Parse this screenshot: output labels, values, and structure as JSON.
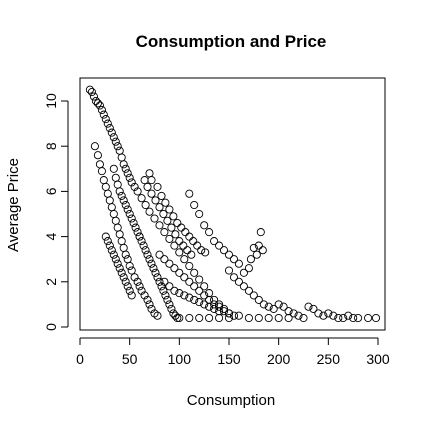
{
  "chart_data": {
    "type": "scatter",
    "title": "Consumption and Price",
    "xlabel": "Consumption",
    "ylabel": "Average Price",
    "xlim": [
      0,
      300
    ],
    "ylim": [
      0,
      10
    ],
    "xticks": [
      0,
      50,
      100,
      150,
      200,
      250,
      300
    ],
    "yticks": [
      0,
      2,
      4,
      6,
      8,
      10
    ],
    "marker": "open-circle",
    "grid": false,
    "point_count_estimate": 1200,
    "points": [
      [
        10,
        10.5
      ],
      [
        12,
        10.4
      ],
      [
        14,
        10.2
      ],
      [
        16,
        10.0
      ],
      [
        18,
        9.9
      ],
      [
        20,
        9.8
      ],
      [
        22,
        9.6
      ],
      [
        24,
        9.4
      ],
      [
        26,
        9.2
      ],
      [
        28,
        9.0
      ],
      [
        30,
        8.8
      ],
      [
        32,
        8.6
      ],
      [
        34,
        8.4
      ],
      [
        36,
        8.2
      ],
      [
        38,
        8.0
      ],
      [
        40,
        7.8
      ],
      [
        42,
        7.5
      ],
      [
        44,
        7.2
      ],
      [
        46,
        7.0
      ],
      [
        48,
        6.8
      ],
      [
        50,
        6.6
      ],
      [
        52,
        6.4
      ],
      [
        55,
        6.2
      ],
      [
        58,
        6.0
      ],
      [
        62,
        5.7
      ],
      [
        66,
        5.4
      ],
      [
        70,
        5.1
      ],
      [
        75,
        4.8
      ],
      [
        80,
        4.5
      ],
      [
        85,
        4.2
      ],
      [
        90,
        3.9
      ],
      [
        95,
        3.6
      ],
      [
        100,
        3.3
      ],
      [
        105,
        3.0
      ],
      [
        110,
        2.7
      ],
      [
        115,
        2.4
      ],
      [
        120,
        2.1
      ],
      [
        125,
        1.8
      ],
      [
        130,
        1.5
      ],
      [
        135,
        1.2
      ],
      [
        140,
        1.0
      ],
      [
        145,
        0.8
      ],
      [
        150,
        0.6
      ],
      [
        155,
        0.5
      ],
      [
        15,
        8.0
      ],
      [
        18,
        7.6
      ],
      [
        20,
        7.2
      ],
      [
        22,
        6.9
      ],
      [
        24,
        6.5
      ],
      [
        26,
        6.2
      ],
      [
        28,
        5.9
      ],
      [
        30,
        5.6
      ],
      [
        32,
        5.3
      ],
      [
        34,
        5.0
      ],
      [
        36,
        4.7
      ],
      [
        38,
        4.4
      ],
      [
        40,
        4.1
      ],
      [
        42,
        3.8
      ],
      [
        44,
        3.5
      ],
      [
        46,
        3.2
      ],
      [
        48,
        3.0
      ],
      [
        50,
        2.7
      ],
      [
        52,
        2.5
      ],
      [
        55,
        2.2
      ],
      [
        58,
        2.0
      ],
      [
        60,
        1.8
      ],
      [
        62,
        1.6
      ],
      [
        65,
        1.4
      ],
      [
        68,
        1.2
      ],
      [
        70,
        1.0
      ],
      [
        72,
        0.8
      ],
      [
        75,
        0.6
      ],
      [
        78,
        0.5
      ],
      [
        65,
        6.5
      ],
      [
        68,
        6.2
      ],
      [
        72,
        5.9
      ],
      [
        76,
        5.6
      ],
      [
        80,
        5.3
      ],
      [
        84,
        5.0
      ],
      [
        88,
        4.7
      ],
      [
        92,
        4.4
      ],
      [
        96,
        4.1
      ],
      [
        100,
        3.8
      ],
      [
        104,
        3.6
      ],
      [
        108,
        3.4
      ],
      [
        112,
        3.2
      ],
      [
        70,
        6.8
      ],
      [
        72,
        6.5
      ],
      [
        78,
        6.2
      ],
      [
        82,
        5.8
      ],
      [
        86,
        5.5
      ],
      [
        90,
        5.2
      ],
      [
        94,
        4.9
      ],
      [
        98,
        4.6
      ],
      [
        102,
        4.4
      ],
      [
        106,
        4.2
      ],
      [
        110,
        4.0
      ],
      [
        114,
        3.8
      ],
      [
        118,
        3.6
      ],
      [
        122,
        3.4
      ],
      [
        126,
        3.3
      ],
      [
        110,
        5.9
      ],
      [
        115,
        5.4
      ],
      [
        120,
        5.0
      ],
      [
        125,
        4.5
      ],
      [
        130,
        4.2
      ],
      [
        135,
        3.8
      ],
      [
        140,
        3.6
      ],
      [
        145,
        3.4
      ],
      [
        150,
        3.2
      ],
      [
        155,
        3.0
      ],
      [
        160,
        2.8
      ],
      [
        165,
        2.4
      ],
      [
        175,
        3.5
      ],
      [
        178,
        3.2
      ],
      [
        180,
        3.6
      ],
      [
        182,
        4.2
      ],
      [
        184,
        3.4
      ],
      [
        172,
        3.0
      ],
      [
        170,
        2.6
      ],
      [
        150,
        2.5
      ],
      [
        155,
        2.2
      ],
      [
        160,
        2.0
      ],
      [
        165,
        1.8
      ],
      [
        170,
        1.6
      ],
      [
        175,
        1.4
      ],
      [
        180,
        1.2
      ],
      [
        185,
        1.0
      ],
      [
        190,
        0.9
      ],
      [
        195,
        0.8
      ],
      [
        200,
        1.0
      ],
      [
        205,
        0.9
      ],
      [
        210,
        0.7
      ],
      [
        215,
        0.6
      ],
      [
        220,
        0.5
      ],
      [
        225,
        0.4
      ],
      [
        230,
        0.9
      ],
      [
        235,
        0.8
      ],
      [
        240,
        0.6
      ],
      [
        245,
        0.5
      ],
      [
        250,
        0.6
      ],
      [
        255,
        0.5
      ],
      [
        260,
        0.4
      ],
      [
        265,
        0.4
      ],
      [
        270,
        0.5
      ],
      [
        275,
        0.4
      ],
      [
        280,
        0.4
      ],
      [
        290,
        0.4
      ],
      [
        298,
        0.4
      ],
      [
        80,
        3.2
      ],
      [
        85,
        3.0
      ],
      [
        90,
        2.8
      ],
      [
        95,
        2.6
      ],
      [
        100,
        2.4
      ],
      [
        105,
        2.2
      ],
      [
        110,
        2.0
      ],
      [
        115,
        1.8
      ],
      [
        120,
        1.6
      ],
      [
        125,
        1.4
      ],
      [
        130,
        1.2
      ],
      [
        135,
        1.0
      ],
      [
        140,
        0.9
      ],
      [
        145,
        0.7
      ],
      [
        85,
        2.0
      ],
      [
        90,
        1.8
      ],
      [
        95,
        1.6
      ],
      [
        100,
        1.5
      ],
      [
        105,
        1.4
      ],
      [
        110,
        1.3
      ],
      [
        115,
        1.2
      ],
      [
        120,
        1.1
      ],
      [
        125,
        1.0
      ],
      [
        130,
        0.9
      ],
      [
        135,
        0.8
      ],
      [
        140,
        0.7
      ],
      [
        150,
        0.6
      ],
      [
        160,
        0.5
      ],
      [
        170,
        0.4
      ],
      [
        180,
        0.4
      ],
      [
        190,
        0.4
      ],
      [
        200,
        0.4
      ],
      [
        210,
        0.4
      ],
      [
        60,
        4.0
      ],
      [
        62,
        3.8
      ],
      [
        64,
        3.6
      ],
      [
        66,
        3.4
      ],
      [
        68,
        3.2
      ],
      [
        70,
        3.0
      ],
      [
        72,
        2.8
      ],
      [
        74,
        2.6
      ],
      [
        76,
        2.4
      ],
      [
        78,
        2.2
      ],
      [
        80,
        2.0
      ],
      [
        82,
        1.8
      ],
      [
        84,
        1.6
      ],
      [
        86,
        1.4
      ],
      [
        88,
        1.2
      ],
      [
        90,
        1.0
      ],
      [
        92,
        0.8
      ],
      [
        94,
        0.6
      ],
      [
        96,
        0.5
      ],
      [
        98,
        0.4
      ],
      [
        100,
        0.4
      ],
      [
        110,
        0.4
      ],
      [
        120,
        0.4
      ],
      [
        130,
        0.4
      ],
      [
        140,
        0.4
      ],
      [
        150,
        0.4
      ],
      [
        34,
        7.0
      ],
      [
        36,
        6.6
      ],
      [
        38,
        6.3
      ],
      [
        40,
        6.0
      ],
      [
        42,
        5.8
      ],
      [
        44,
        5.6
      ],
      [
        46,
        5.4
      ],
      [
        48,
        5.2
      ],
      [
        50,
        5.0
      ],
      [
        52,
        4.8
      ],
      [
        54,
        4.6
      ],
      [
        56,
        4.4
      ],
      [
        58,
        4.2
      ],
      [
        60,
        4.0
      ],
      [
        26,
        4.0
      ],
      [
        28,
        3.8
      ],
      [
        30,
        3.6
      ],
      [
        32,
        3.4
      ],
      [
        34,
        3.2
      ],
      [
        36,
        3.0
      ],
      [
        38,
        2.8
      ],
      [
        40,
        2.6
      ],
      [
        42,
        2.4
      ],
      [
        44,
        2.2
      ],
      [
        46,
        2.0
      ],
      [
        48,
        1.8
      ],
      [
        50,
        1.6
      ],
      [
        52,
        1.4
      ]
    ]
  }
}
